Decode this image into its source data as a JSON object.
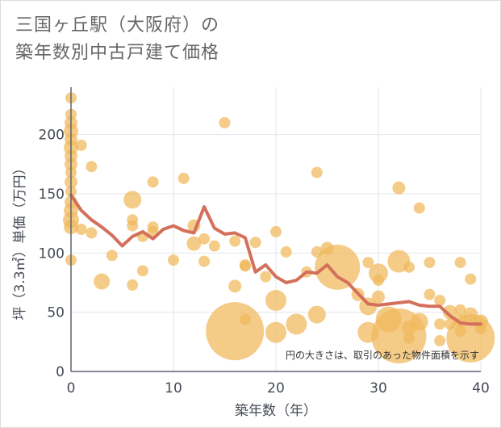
{
  "title": {
    "line1": "三国ヶ丘駅（大阪府）の",
    "line2": "築年数別中古戸建て価格"
  },
  "colors": {
    "bubble": "#f0b95a",
    "line": "#d4705a",
    "grid": "#e3e6ea",
    "axis": "#5a6470",
    "background": "#ffffff"
  },
  "chart_data": {
    "type": "scatter",
    "title": "三国ヶ丘駅（大阪府）の 築年数別中古戸建て価格",
    "xlabel": "築年数（年）",
    "ylabel": "坪（3.3㎡）単価（万円）",
    "xlim": [
      0,
      40
    ],
    "ylim": [
      0,
      240
    ],
    "xticks": [
      0,
      10,
      20,
      30,
      40
    ],
    "yticks": [
      0,
      50,
      100,
      150,
      200
    ],
    "grid": true,
    "annotation": "円の大きさは、取引のあった物件面積を示す",
    "bubbles": [
      {
        "x": 0,
        "y": 231,
        "s": 7
      },
      {
        "x": 0,
        "y": 217,
        "s": 7
      },
      {
        "x": 0,
        "y": 210,
        "s": 8
      },
      {
        "x": 0,
        "y": 203,
        "s": 9
      },
      {
        "x": 0,
        "y": 196,
        "s": 8
      },
      {
        "x": 0,
        "y": 189,
        "s": 9
      },
      {
        "x": 0,
        "y": 182,
        "s": 8
      },
      {
        "x": 0,
        "y": 175,
        "s": 8
      },
      {
        "x": 0,
        "y": 168,
        "s": 7
      },
      {
        "x": 0,
        "y": 160,
        "s": 8
      },
      {
        "x": 0,
        "y": 152,
        "s": 7
      },
      {
        "x": 0,
        "y": 143,
        "s": 8
      },
      {
        "x": 0,
        "y": 136,
        "s": 9
      },
      {
        "x": 0,
        "y": 128,
        "s": 10
      },
      {
        "x": 0,
        "y": 122,
        "s": 9
      },
      {
        "x": 0,
        "y": 94,
        "s": 7
      },
      {
        "x": 1,
        "y": 191,
        "s": 7
      },
      {
        "x": 1,
        "y": 120,
        "s": 7
      },
      {
        "x": 2,
        "y": 173,
        "s": 7
      },
      {
        "x": 2,
        "y": 117,
        "s": 7
      },
      {
        "x": 3,
        "y": 76,
        "s": 10
      },
      {
        "x": 4,
        "y": 98,
        "s": 7
      },
      {
        "x": 6,
        "y": 145,
        "s": 11
      },
      {
        "x": 6,
        "y": 128,
        "s": 7
      },
      {
        "x": 6,
        "y": 123,
        "s": 7
      },
      {
        "x": 6,
        "y": 73,
        "s": 7
      },
      {
        "x": 7,
        "y": 114,
        "s": 7
      },
      {
        "x": 7,
        "y": 85,
        "s": 7
      },
      {
        "x": 8,
        "y": 160,
        "s": 7
      },
      {
        "x": 8,
        "y": 122,
        "s": 7
      },
      {
        "x": 8,
        "y": 118,
        "s": 7
      },
      {
        "x": 10,
        "y": 94,
        "s": 7
      },
      {
        "x": 11,
        "y": 163,
        "s": 7
      },
      {
        "x": 12,
        "y": 123,
        "s": 8
      },
      {
        "x": 12,
        "y": 108,
        "s": 9
      },
      {
        "x": 13,
        "y": 112,
        "s": 7
      },
      {
        "x": 13,
        "y": 93,
        "s": 7
      },
      {
        "x": 14,
        "y": 106,
        "s": 7
      },
      {
        "x": 15,
        "y": 210,
        "s": 7
      },
      {
        "x": 16,
        "y": 110,
        "s": 7
      },
      {
        "x": 16,
        "y": 72,
        "s": 8
      },
      {
        "x": 16,
        "y": 34,
        "s": 36
      },
      {
        "x": 17,
        "y": 90,
        "s": 7
      },
      {
        "x": 17,
        "y": 89,
        "s": 7
      },
      {
        "x": 17,
        "y": 44,
        "s": 7
      },
      {
        "x": 18,
        "y": 109,
        "s": 7
      },
      {
        "x": 19,
        "y": 80,
        "s": 7
      },
      {
        "x": 20,
        "y": 118,
        "s": 7
      },
      {
        "x": 20,
        "y": 60,
        "s": 13
      },
      {
        "x": 20,
        "y": 33,
        "s": 13
      },
      {
        "x": 21,
        "y": 101,
        "s": 7
      },
      {
        "x": 22,
        "y": 40,
        "s": 13
      },
      {
        "x": 23,
        "y": 84,
        "s": 7
      },
      {
        "x": 24,
        "y": 168,
        "s": 7
      },
      {
        "x": 24,
        "y": 101,
        "s": 7
      },
      {
        "x": 24,
        "y": 48,
        "s": 11
      },
      {
        "x": 25,
        "y": 104,
        "s": 8
      },
      {
        "x": 26,
        "y": 88,
        "s": 28
      },
      {
        "x": 28,
        "y": 65,
        "s": 8
      },
      {
        "x": 29,
        "y": 92,
        "s": 7
      },
      {
        "x": 29,
        "y": 55,
        "s": 11
      },
      {
        "x": 29,
        "y": 33,
        "s": 13
      },
      {
        "x": 30,
        "y": 83,
        "s": 12
      },
      {
        "x": 30,
        "y": 77,
        "s": 7
      },
      {
        "x": 30,
        "y": 63,
        "s": 8
      },
      {
        "x": 31,
        "y": 44,
        "s": 16
      },
      {
        "x": 32,
        "y": 155,
        "s": 8
      },
      {
        "x": 32,
        "y": 93,
        "s": 14
      },
      {
        "x": 32,
        "y": 30,
        "s": 34
      },
      {
        "x": 33,
        "y": 88,
        "s": 7
      },
      {
        "x": 33,
        "y": 37,
        "s": 9
      },
      {
        "x": 33,
        "y": 28,
        "s": 7
      },
      {
        "x": 34,
        "y": 138,
        "s": 7
      },
      {
        "x": 34,
        "y": 42,
        "s": 11
      },
      {
        "x": 35,
        "y": 92,
        "s": 7
      },
      {
        "x": 35,
        "y": 65,
        "s": 7
      },
      {
        "x": 36,
        "y": 60,
        "s": 7
      },
      {
        "x": 36,
        "y": 40,
        "s": 7
      },
      {
        "x": 36,
        "y": 26,
        "s": 7
      },
      {
        "x": 37,
        "y": 50,
        "s": 9
      },
      {
        "x": 37,
        "y": 40,
        "s": 7
      },
      {
        "x": 38,
        "y": 92,
        "s": 7
      },
      {
        "x": 38,
        "y": 52,
        "s": 7
      },
      {
        "x": 38,
        "y": 43,
        "s": 8
      },
      {
        "x": 38,
        "y": 34,
        "s": 7
      },
      {
        "x": 39,
        "y": 78,
        "s": 7
      },
      {
        "x": 39,
        "y": 48,
        "s": 9
      },
      {
        "x": 39,
        "y": 28,
        "s": 30
      },
      {
        "x": 40,
        "y": 42,
        "s": 9
      },
      {
        "x": 40,
        "y": 36,
        "s": 7
      }
    ],
    "series": [
      {
        "x": [
          0,
          1,
          2,
          3,
          4,
          5,
          6,
          7,
          8,
          9,
          10,
          11,
          12,
          13,
          14,
          15,
          16,
          17,
          18,
          19,
          20,
          21,
          22,
          23,
          24,
          25,
          26,
          27,
          28,
          29,
          30,
          31,
          32,
          33,
          34,
          35,
          36,
          37,
          38,
          39,
          40
        ],
        "y": [
          149,
          136,
          128,
          122,
          115,
          106,
          114,
          118,
          112,
          120,
          123,
          119,
          117,
          139,
          121,
          116,
          117,
          113,
          84,
          90,
          80,
          75,
          77,
          84,
          83,
          90,
          80,
          75,
          66,
          57,
          56,
          57,
          58,
          59,
          56,
          55,
          55,
          47,
          41,
          40,
          40
        ]
      }
    ]
  }
}
